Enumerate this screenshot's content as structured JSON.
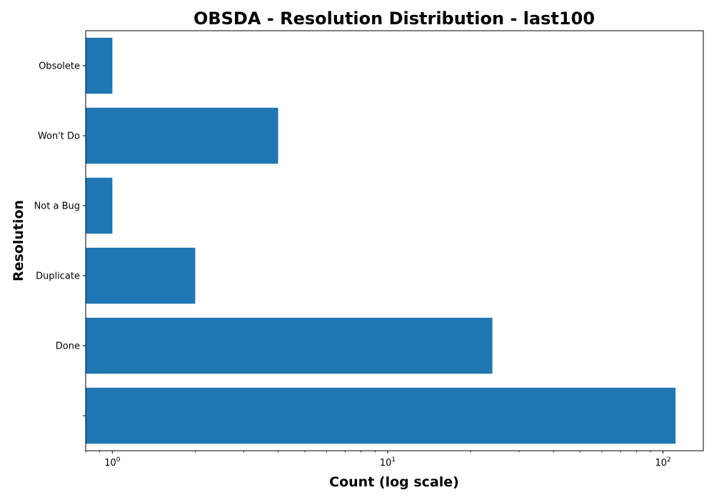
{
  "chart_data": {
    "type": "bar",
    "orientation": "horizontal",
    "title": "OBSDA - Resolution Distribution - last100",
    "xlabel": "Count (log scale)",
    "ylabel": "Resolution",
    "xscale": "log",
    "xlim": [
      0.8,
      140
    ],
    "grid": false,
    "categories": [
      "",
      "Done",
      "Duplicate",
      "Not a Bug",
      "Won't Do",
      "Obsolete"
    ],
    "values": [
      111,
      24,
      2,
      1,
      4,
      1
    ],
    "x_ticks": [
      {
        "base": "10",
        "exp": "0",
        "value": 1
      },
      {
        "base": "10",
        "exp": "1",
        "value": 10
      },
      {
        "base": "10",
        "exp": "2",
        "value": 100
      }
    ],
    "bar_color": "#1f77b4"
  }
}
